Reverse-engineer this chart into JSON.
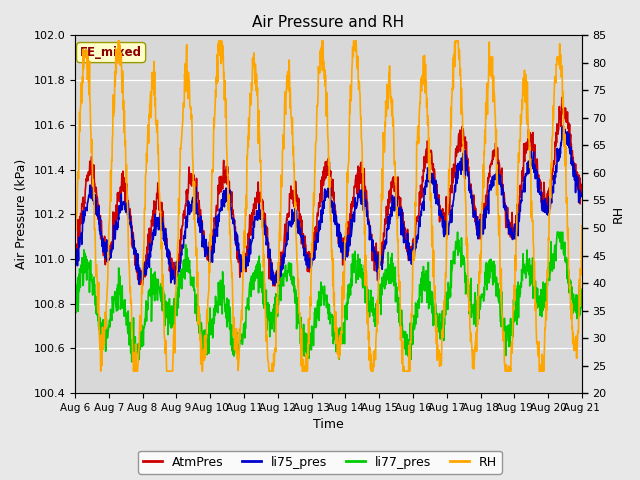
{
  "title": "Air Pressure and RH",
  "xlabel": "Time",
  "ylabel_left": "Air Pressure (kPa)",
  "ylabel_right": "RH",
  "annotation": "EE_mixed",
  "ylim_left": [
    100.4,
    102.0
  ],
  "ylim_right": [
    20,
    85
  ],
  "yticks_left": [
    100.4,
    100.6,
    100.8,
    101.0,
    101.2,
    101.4,
    101.6,
    101.8,
    102.0
  ],
  "yticks_right": [
    20,
    25,
    30,
    35,
    40,
    45,
    50,
    55,
    60,
    65,
    70,
    75,
    80,
    85
  ],
  "xtick_labels": [
    "Aug 6",
    "Aug 7",
    "Aug 8",
    "Aug 9",
    "Aug 10",
    "Aug 11",
    "Aug 12",
    "Aug 13",
    "Aug 14",
    "Aug 15",
    "Aug 16",
    "Aug 17",
    "Aug 18",
    "Aug 19",
    "Aug 20",
    "Aug 21"
  ],
  "legend_labels": [
    "AtmPres",
    "li75_pres",
    "li77_pres",
    "RH"
  ],
  "colors": {
    "AtmPres": "#cc0000",
    "li75_pres": "#0000cc",
    "li77_pres": "#00cc00",
    "RH": "#ffa500"
  },
  "fig_bg_color": "#e8e8e8",
  "plot_bg_color": "#d8d8d8",
  "grid_color": "#ffffff",
  "linewidth": 1.2
}
